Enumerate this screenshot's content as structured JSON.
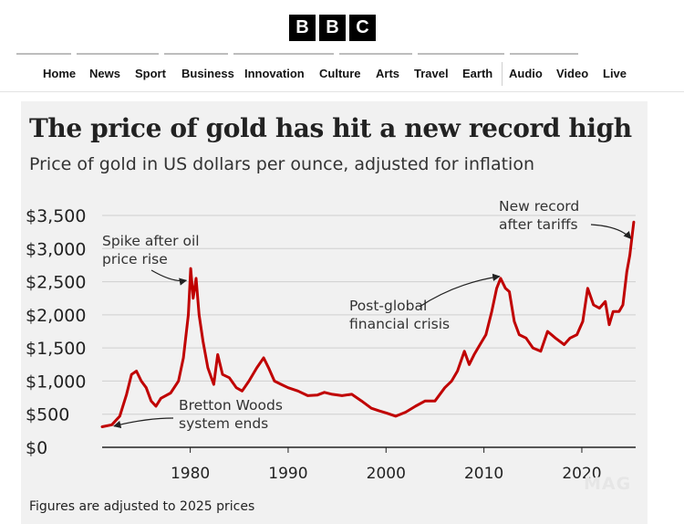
{
  "header": {
    "logo_letters": [
      "B",
      "B",
      "C"
    ],
    "nav": [
      "Home",
      "News",
      "Sport",
      "Business",
      "Innovation",
      "Culture",
      "Arts",
      "Travel",
      "Earth",
      "Audio",
      "Video",
      "Live"
    ]
  },
  "colors": {
    "line": "#c00000",
    "card_bg": "#f1f1f1",
    "grid": "#cfcfcf"
  },
  "chart_data": {
    "type": "line",
    "title": "The price of gold has hit a new record high",
    "subtitle": "Price of gold in US dollars per ounce, adjusted for inflation",
    "footnote": "Figures are adjusted to 2025 prices",
    "y_tick_labels": [
      "$0",
      "$500",
      "$1,000",
      "$1,500",
      "$2,000",
      "$2,500",
      "$3,000",
      "$3,500"
    ],
    "y_ticks": [
      0,
      500,
      1000,
      1500,
      2000,
      2500,
      3000,
      3500
    ],
    "x_tick_labels": [
      "1980",
      "1990",
      "2000",
      "2010",
      "2020"
    ],
    "x_ticks": [
      1980,
      1990,
      2000,
      2010,
      2020
    ],
    "xlim": [
      1971,
      2025.5
    ],
    "ylim": [
      0,
      3500
    ],
    "grid": true,
    "series": [
      {
        "x": [
          1971,
          1972,
          1972.8,
          1973.5,
          1974,
          1974.5,
          1975,
          1975.5,
          1976,
          1976.5,
          1977,
          1978,
          1978.8,
          1979.3,
          1979.8,
          1980.05,
          1980.3,
          1980.6,
          1980.9,
          1981.3,
          1981.8,
          1982.4,
          1982.8,
          1983.3,
          1984,
          1984.7,
          1985.3,
          1986,
          1986.8,
          1987.5,
          1988,
          1988.6,
          1989.3,
          1990,
          1991,
          1992,
          1993,
          1993.7,
          1994.5,
          1995.5,
          1996.5,
          1997.5,
          1998.5,
          1999.3,
          2000,
          2001,
          2002,
          2003,
          2004,
          2005,
          2006,
          2006.7,
          2007.3,
          2008,
          2008.5,
          2009,
          2009.6,
          2010.2,
          2010.8,
          2011.3,
          2011.7,
          2012.2,
          2012.6,
          2013.1,
          2013.6,
          2014.3,
          2015,
          2015.8,
          2016.5,
          2017.3,
          2018.2,
          2018.8,
          2019.5,
          2020.1,
          2020.6,
          2021.2,
          2021.8,
          2022.4,
          2022.8,
          2023.2,
          2023.8,
          2024.2,
          2024.6,
          2024.9,
          2025.3
        ],
        "values": [
          310,
          340,
          470,
          800,
          1100,
          1150,
          1000,
          900,
          700,
          620,
          740,
          820,
          1000,
          1350,
          2000,
          2700,
          2250,
          2550,
          2000,
          1600,
          1200,
          950,
          1400,
          1100,
          1050,
          900,
          850,
          1000,
          1200,
          1350,
          1200,
          1000,
          950,
          900,
          850,
          780,
          790,
          830,
          800,
          780,
          800,
          700,
          590,
          550,
          520,
          470,
          530,
          620,
          700,
          700,
          900,
          1000,
          1150,
          1450,
          1250,
          1400,
          1550,
          1700,
          2050,
          2400,
          2550,
          2400,
          2350,
          1900,
          1700,
          1650,
          1500,
          1450,
          1750,
          1650,
          1550,
          1650,
          1700,
          1900,
          2400,
          2150,
          2100,
          2200,
          1850,
          2050,
          2050,
          2150,
          2650,
          2900,
          3400
        ]
      }
    ],
    "annotations": [
      {
        "text_lines": [
          "Spike after oil",
          "price rise"
        ],
        "target": [
          1979.6,
          2520
        ]
      },
      {
        "text_lines": [
          "Bretton Woods",
          "system ends"
        ],
        "target": [
          1972.2,
          320
        ]
      },
      {
        "text_lines": [
          "Post-global",
          "financial crisis"
        ],
        "target": [
          2011.6,
          2580
        ]
      },
      {
        "text_lines": [
          "New record",
          "after tariffs"
        ],
        "target": [
          2025.0,
          3150
        ]
      }
    ],
    "watermark": "MAG"
  }
}
